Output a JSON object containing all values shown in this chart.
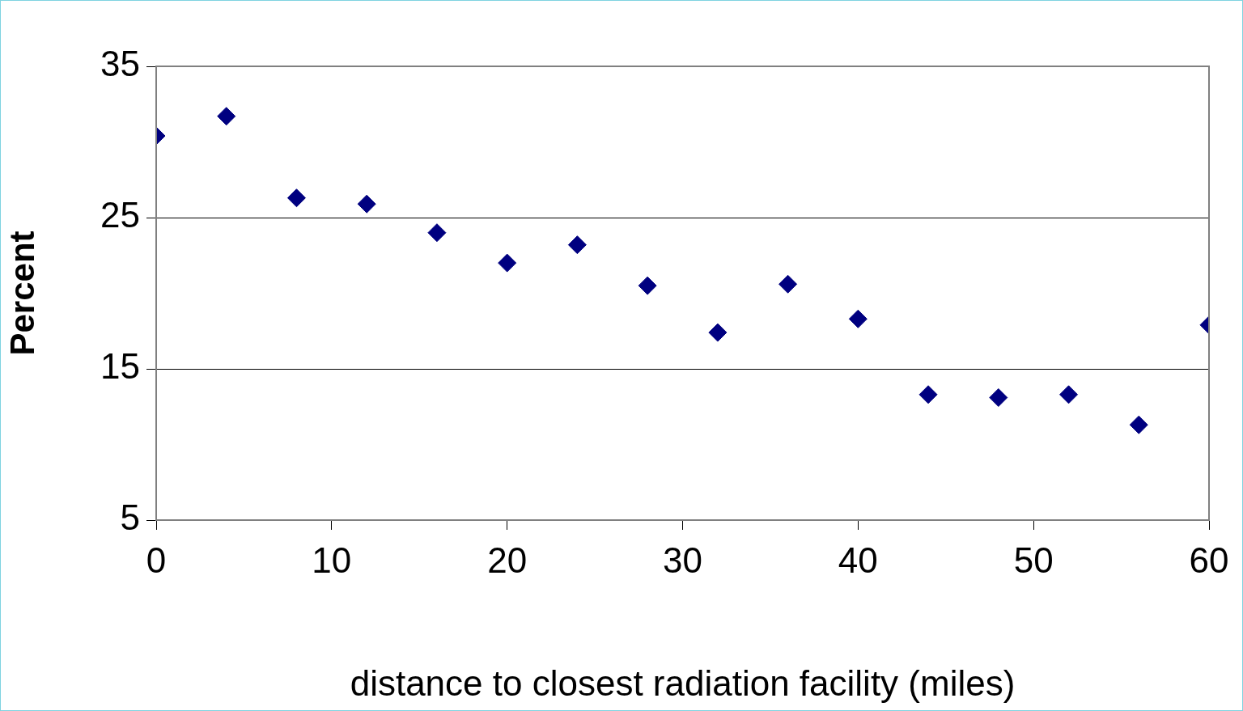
{
  "chart_data": {
    "type": "scatter",
    "xlabel": "distance to closest radiation facility (miles)",
    "ylabel": "Percent",
    "xlim": [
      0,
      60
    ],
    "xticks": [
      0,
      10,
      20,
      30,
      40,
      50,
      60
    ],
    "ylim": [
      5,
      35
    ],
    "yticks": [
      5,
      15,
      25,
      35
    ],
    "grid": "y",
    "marker": "diamond",
    "series": [
      {
        "color": "#000080",
        "x": [
          0,
          4,
          8,
          12,
          16,
          20,
          24,
          28,
          32,
          36,
          40,
          44,
          48,
          52,
          56,
          60
        ],
        "values": [
          30.4,
          31.7,
          26.3,
          25.9,
          24.0,
          22.0,
          23.2,
          20.5,
          17.4,
          20.6,
          18.3,
          13.3,
          13.1,
          13.3,
          11.3,
          17.9
        ]
      }
    ]
  }
}
